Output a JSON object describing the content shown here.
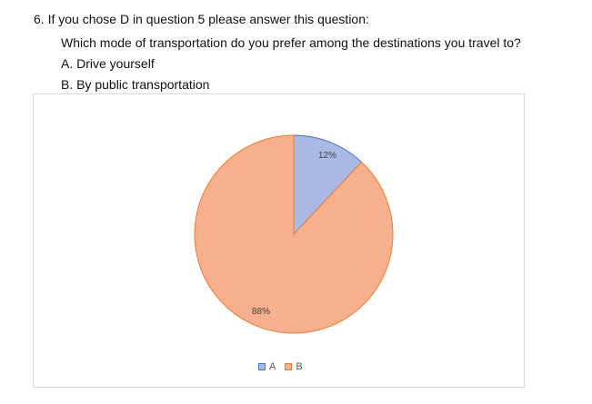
{
  "question": {
    "title": "6.  If you chose D in question 5 please answer this question:",
    "prompt": "Which mode of transportation do you prefer among the destinations you travel to?",
    "options": [
      {
        "letter": "A.",
        "text": "Drive yourself"
      },
      {
        "letter": "B.",
        "text": "By public transportation"
      }
    ]
  },
  "chart_data": {
    "type": "pie",
    "title": "",
    "categories": [
      "A",
      "B"
    ],
    "values": [
      12,
      88
    ],
    "data_labels": [
      "12%",
      "88%"
    ],
    "colors": [
      "#a9b9e4",
      "#f6b08d"
    ],
    "stroke_colors": [
      "#4472c4",
      "#ed7d31"
    ],
    "legend_position": "bottom"
  }
}
